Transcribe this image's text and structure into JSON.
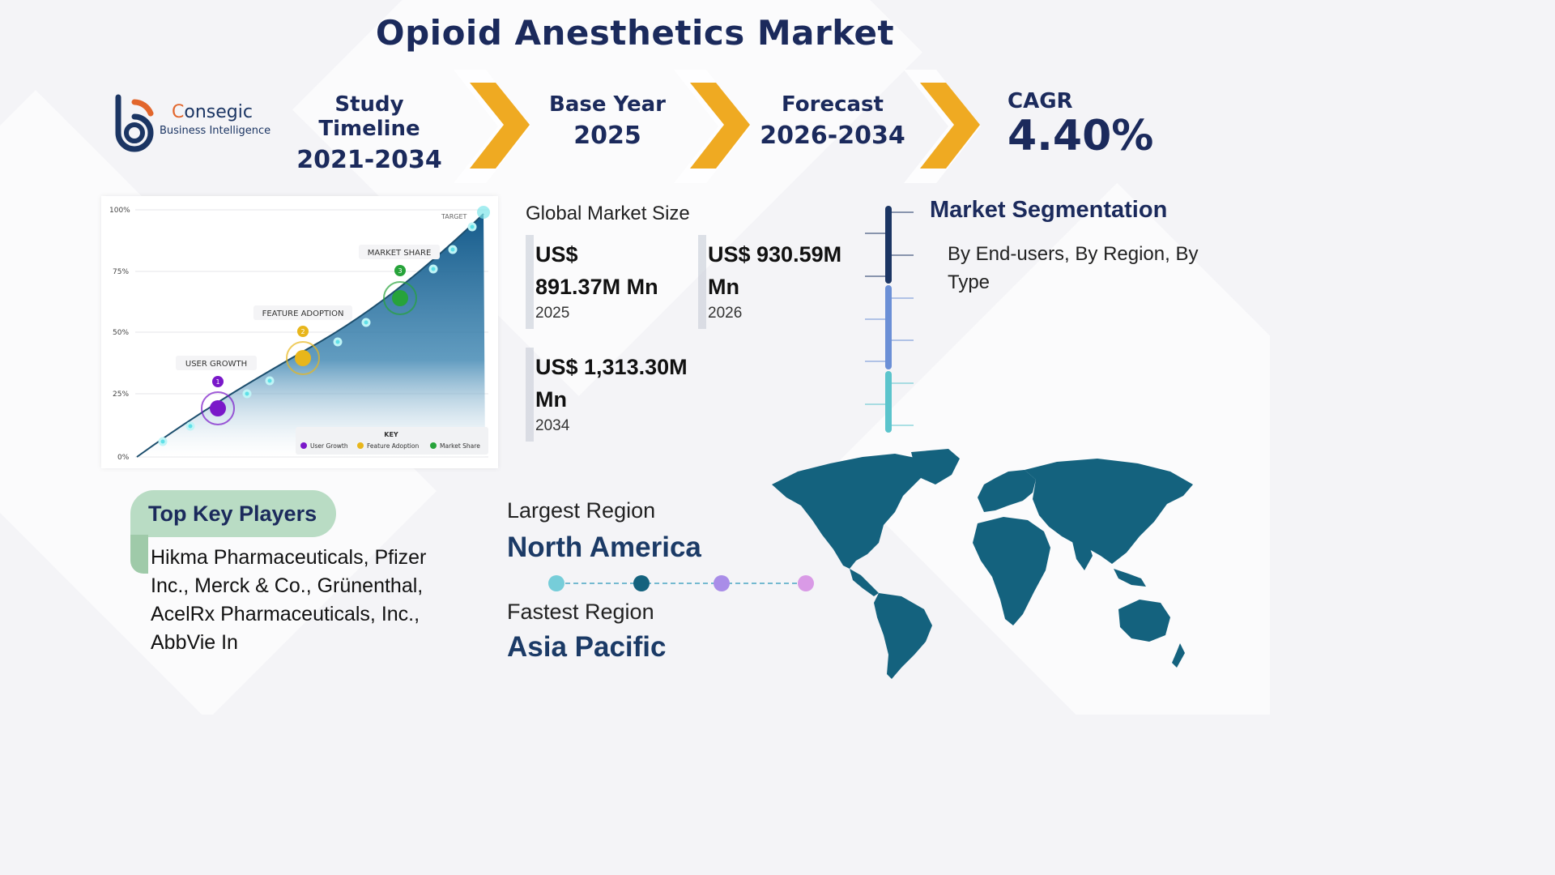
{
  "title": "Opioid Anesthetics Market",
  "logo": {
    "name_part1": "C",
    "name_part2": "onsegic",
    "subtitle": "Business Intelligence"
  },
  "timeline": [
    {
      "label": "Study Timeline",
      "value": "2021-2034"
    },
    {
      "label": "Base Year",
      "value": "2025"
    },
    {
      "label": "Forecast",
      "value": "2026-2034"
    }
  ],
  "cagr": {
    "label": "CAGR",
    "value": "4.40%"
  },
  "illustration": {
    "y_ticks": [
      "100%",
      "75%",
      "50%",
      "25%",
      "0%"
    ],
    "target_label": "TARGET",
    "milestones": [
      {
        "number": "1",
        "label": "USER GROWTH",
        "color": "#7a18c9"
      },
      {
        "number": "2",
        "label": "FEATURE ADOPTION",
        "color": "#e8b61b"
      },
      {
        "number": "3",
        "label": "MARKET SHARE",
        "color": "#27a33a"
      }
    ],
    "key_title": "KEY",
    "key_items": [
      "User Growth",
      "Feature Adoption",
      "Market Share"
    ]
  },
  "market_size": {
    "title": "Global Market Size",
    "cards": [
      {
        "value": "US$ 891.37M Mn",
        "year": "2025"
      },
      {
        "value": "US$ 930.59M Mn",
        "year": "2026"
      },
      {
        "value": "US$ 1,313.30M Mn",
        "year": "2034"
      }
    ]
  },
  "segmentation": {
    "title": "Market Segmentation",
    "text": "By End-users, By Region, By Type"
  },
  "key_players": {
    "title": "Top Key Players",
    "text": "Hikma Pharmaceuticals, Pfizer Inc., Merck & Co., Grünenthal, AcelRx Pharmaceuticals, Inc., AbbVie In"
  },
  "regions": {
    "largest_label": "Largest Region",
    "largest_value": "North America",
    "fastest_label": "Fastest Region",
    "fastest_value": "Asia Pacific"
  },
  "colors": {
    "navy": "#1b2a5c",
    "chevron": "#efaa22",
    "map": "#14627e",
    "tab_green": "#b9dcc4"
  }
}
